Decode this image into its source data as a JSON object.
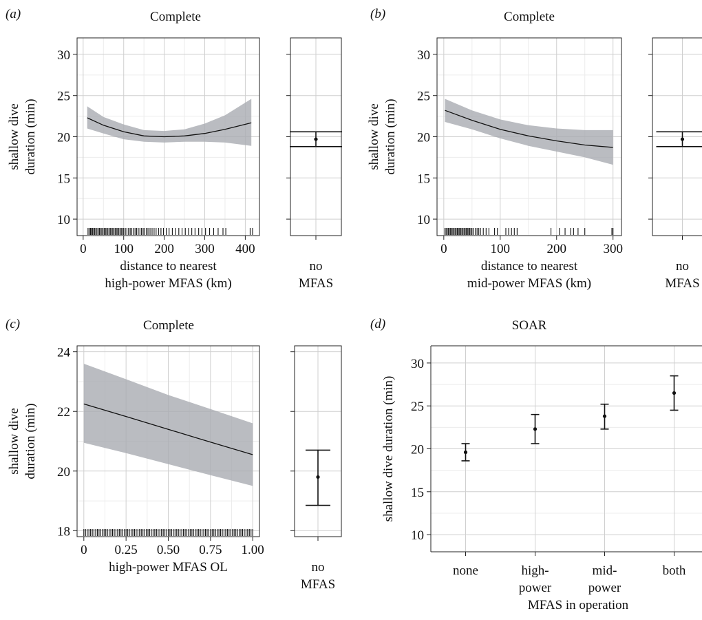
{
  "chart_data": [
    {
      "panel": "(a)",
      "title": "Complete",
      "type": "line",
      "xlabel": [
        "distance to nearest",
        "high-power MFAS (km)"
      ],
      "ylabel": [
        "shallow dive",
        "duration (min)"
      ],
      "xlim": [
        -15,
        435
      ],
      "ylim": [
        8,
        32
      ],
      "xticks": [
        0,
        100,
        200,
        300,
        400
      ],
      "yticks": [
        10,
        15,
        20,
        25,
        30
      ],
      "xticklabels": [
        "0",
        "100",
        "200",
        "300",
        "400"
      ],
      "yticklabels": [
        "10",
        "15",
        "20",
        "25",
        "30"
      ],
      "grid": true,
      "series": [
        {
          "x": [
            10,
            50,
            100,
            150,
            200,
            250,
            300,
            350,
            415
          ],
          "y": [
            22.3,
            21.4,
            20.6,
            20.1,
            20.0,
            20.1,
            20.4,
            20.9,
            21.7
          ],
          "lower": [
            21.0,
            20.4,
            19.7,
            19.4,
            19.3,
            19.4,
            19.4,
            19.3,
            18.9
          ],
          "upper": [
            23.7,
            22.4,
            21.5,
            20.8,
            20.7,
            20.9,
            21.6,
            22.6,
            24.6
          ]
        }
      ],
      "rug": [
        12,
        15,
        18,
        20,
        23,
        26,
        28,
        31,
        34,
        37,
        40,
        43,
        46,
        49,
        52,
        55,
        58,
        61,
        64,
        67,
        70,
        73,
        76,
        79,
        82,
        85,
        88,
        91,
        94,
        97,
        100,
        104,
        108,
        112,
        116,
        120,
        124,
        128,
        132,
        136,
        140,
        144,
        148,
        152,
        156,
        160,
        165,
        170,
        175,
        180,
        186,
        192,
        198,
        205,
        212,
        220,
        228,
        236,
        244,
        252,
        260,
        268,
        276,
        285,
        293,
        302,
        312,
        322,
        333,
        345,
        352,
        412,
        418
      ],
      "no_mfas": {
        "estimate": 19.7,
        "lower": 18.8,
        "upper": 20.6,
        "label": [
          "no",
          "MFAS"
        ]
      }
    },
    {
      "panel": "(b)",
      "title": "Complete",
      "type": "line",
      "xlabel": [
        "distance to nearest",
        "mid-power MFAS (km)"
      ],
      "ylabel": [
        "shallow dive",
        "duration (min)"
      ],
      "xlim": [
        -12,
        315
      ],
      "ylim": [
        8,
        32
      ],
      "xticks": [
        0,
        100,
        200,
        300
      ],
      "yticks": [
        10,
        15,
        20,
        25,
        30
      ],
      "xticklabels": [
        "0",
        "100",
        "200",
        "300"
      ],
      "yticklabels": [
        "10",
        "15",
        "20",
        "25",
        "30"
      ],
      "grid": true,
      "series": [
        {
          "x": [
            2,
            50,
            100,
            150,
            200,
            250,
            300
          ],
          "y": [
            23.2,
            22.0,
            20.9,
            20.1,
            19.5,
            19.0,
            18.7
          ],
          "lower": [
            21.8,
            20.9,
            19.8,
            18.9,
            18.2,
            17.5,
            16.6
          ],
          "upper": [
            24.6,
            23.2,
            22.1,
            21.4,
            21.0,
            20.8,
            20.8
          ]
        }
      ],
      "rug": [
        2,
        4,
        6,
        8,
        10,
        12,
        14,
        16,
        18,
        20,
        22,
        24,
        26,
        28,
        30,
        32,
        34,
        36,
        38,
        40,
        42,
        44,
        46,
        48,
        50,
        53,
        56,
        59,
        62,
        65,
        70,
        75,
        80,
        90,
        95,
        110,
        115,
        120,
        125,
        130,
        190,
        205,
        215,
        225,
        230,
        238,
        250,
        298,
        300
      ],
      "no_mfas": {
        "estimate": 19.7,
        "lower": 18.8,
        "upper": 20.6,
        "label": [
          "no",
          "MFAS"
        ]
      }
    },
    {
      "panel": "(c)",
      "title": "Complete",
      "type": "line",
      "xlabel": [
        "high-power MFAS OL"
      ],
      "ylabel": [
        "shallow dive",
        "duration (min)"
      ],
      "xlim": [
        -0.04,
        1.04
      ],
      "ylim": [
        17.8,
        24.2
      ],
      "xticks": [
        0,
        0.25,
        0.5,
        0.75,
        1
      ],
      "yticks": [
        18,
        20,
        22,
        24
      ],
      "xticklabels": [
        "0",
        "0.25",
        "0.50",
        "0.75",
        "1.00"
      ],
      "yticklabels": [
        "18",
        "20",
        "22",
        "24"
      ],
      "grid": true,
      "series": [
        {
          "x": [
            0,
            0.25,
            0.5,
            0.75,
            1
          ],
          "y": [
            22.25,
            21.83,
            21.4,
            20.97,
            20.55
          ],
          "lower": [
            20.95,
            20.6,
            20.23,
            19.86,
            19.5
          ],
          "upper": [
            23.6,
            23.08,
            22.55,
            22.08,
            21.6
          ]
        }
      ],
      "rug": [
        0.0,
        0.01,
        0.02,
        0.03,
        0.04,
        0.05,
        0.06,
        0.07,
        0.08,
        0.09,
        0.1,
        0.11,
        0.12,
        0.13,
        0.14,
        0.15,
        0.16,
        0.17,
        0.18,
        0.19,
        0.2,
        0.21,
        0.22,
        0.23,
        0.24,
        0.25,
        0.26,
        0.27,
        0.28,
        0.29,
        0.3,
        0.31,
        0.32,
        0.33,
        0.34,
        0.35,
        0.36,
        0.37,
        0.38,
        0.39,
        0.4,
        0.41,
        0.42,
        0.43,
        0.44,
        0.45,
        0.46,
        0.47,
        0.48,
        0.49,
        0.5,
        0.51,
        0.52,
        0.53,
        0.54,
        0.55,
        0.56,
        0.57,
        0.58,
        0.59,
        0.6,
        0.61,
        0.62,
        0.63,
        0.64,
        0.65,
        0.66,
        0.67,
        0.68,
        0.69,
        0.7,
        0.71,
        0.72,
        0.73,
        0.74,
        0.75,
        0.76,
        0.77,
        0.78,
        0.79,
        0.8,
        0.81,
        0.82,
        0.83,
        0.84,
        0.85,
        0.86,
        0.87,
        0.88,
        0.89,
        0.9,
        0.91,
        0.92,
        0.93,
        0.94,
        0.95,
        0.96,
        0.97,
        0.98,
        0.99,
        1.0
      ],
      "no_mfas": {
        "estimate": 19.8,
        "lower": 18.85,
        "upper": 20.7,
        "label": [
          "no",
          "MFAS"
        ]
      }
    },
    {
      "panel": "(d)",
      "title": "SOAR",
      "type": "scatter",
      "xlabel": [
        "MFAS in operation"
      ],
      "ylabel": [
        "shallow dive duration (min)"
      ],
      "ylim": [
        8,
        32
      ],
      "yticks": [
        10,
        15,
        20,
        25,
        30
      ],
      "yticklabels": [
        "10",
        "15",
        "20",
        "25",
        "30"
      ],
      "grid": true,
      "categories": [
        [
          "none"
        ],
        [
          "high-",
          "power"
        ],
        [
          "mid-",
          "power"
        ],
        [
          "both"
        ]
      ],
      "values": [
        19.6,
        22.3,
        23.8,
        26.5
      ],
      "lower": [
        18.6,
        20.6,
        22.3,
        24.5
      ],
      "upper": [
        20.6,
        24.0,
        25.2,
        28.5
      ]
    }
  ]
}
